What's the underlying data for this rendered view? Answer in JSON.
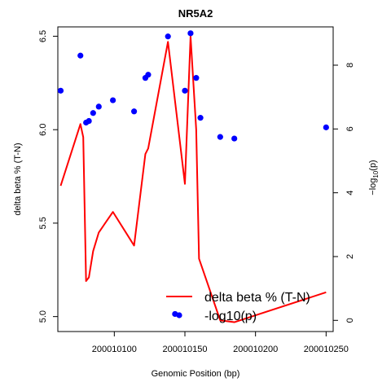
{
  "chart_data": {
    "type": "line",
    "title": "NR5A2",
    "xlabel": "Genomic Position (bp)",
    "ylabel": "delta beta % (T-N)",
    "y2label": "-log10(p)",
    "xlim": [
      200010060,
      200010255
    ],
    "ylim": [
      4.92,
      6.55
    ],
    "y2lim": [
      -0.35,
      9.2
    ],
    "x_ticks": [
      200010100,
      200010150,
      200010200,
      200010250
    ],
    "x_tick_labels": [
      "200010100",
      "200010150",
      "200010200",
      "200010250"
    ],
    "y_ticks": [
      5.0,
      5.5,
      6.0,
      6.5
    ],
    "y_tick_labels": [
      "5.0",
      "5.5",
      "6.0",
      "6.5"
    ],
    "y2_ticks": [
      0,
      2,
      4,
      6,
      8
    ],
    "y2_tick_labels": [
      "0",
      "2",
      "4",
      "6",
      "8"
    ],
    "colors": {
      "line": "#ff0000",
      "points": "#0000ff"
    },
    "series": [
      {
        "name": "delta beta % (T-N)",
        "kind": "line",
        "axis": "left",
        "x": [
          200010062,
          200010076,
          200010078,
          200010080,
          200010082,
          200010085,
          200010089,
          200010099,
          200010114,
          200010122,
          200010124,
          200010138,
          200010150,
          200010154,
          200010158,
          200010160,
          200010175,
          200010185,
          200010250
        ],
        "y": [
          5.7,
          6.03,
          5.96,
          5.19,
          5.21,
          5.35,
          5.45,
          5.56,
          5.38,
          5.87,
          5.9,
          6.47,
          5.71,
          6.5,
          6.0,
          5.31,
          4.98,
          4.97,
          5.13
        ]
      },
      {
        "name": "-log10(p)",
        "kind": "points",
        "axis": "right",
        "x": [
          200010062,
          200010076,
          200010080,
          200010082,
          200010085,
          200010089,
          200010099,
          200010114,
          200010122,
          200010124,
          200010138,
          200010143,
          200010150,
          200010154,
          200010158,
          200010161,
          200010175,
          200010185,
          200010250
        ],
        "y": [
          7.2,
          8.3,
          6.2,
          6.25,
          6.5,
          6.7,
          6.9,
          6.55,
          7.6,
          7.7,
          8.9,
          0.2,
          7.2,
          9.0,
          7.6,
          6.35,
          5.75,
          5.7,
          6.05
        ]
      }
    ],
    "legend": {
      "position": "bottom-right",
      "entries": [
        "delta beta % (T-N)",
        "-log10(p)"
      ]
    },
    "grid": false
  }
}
